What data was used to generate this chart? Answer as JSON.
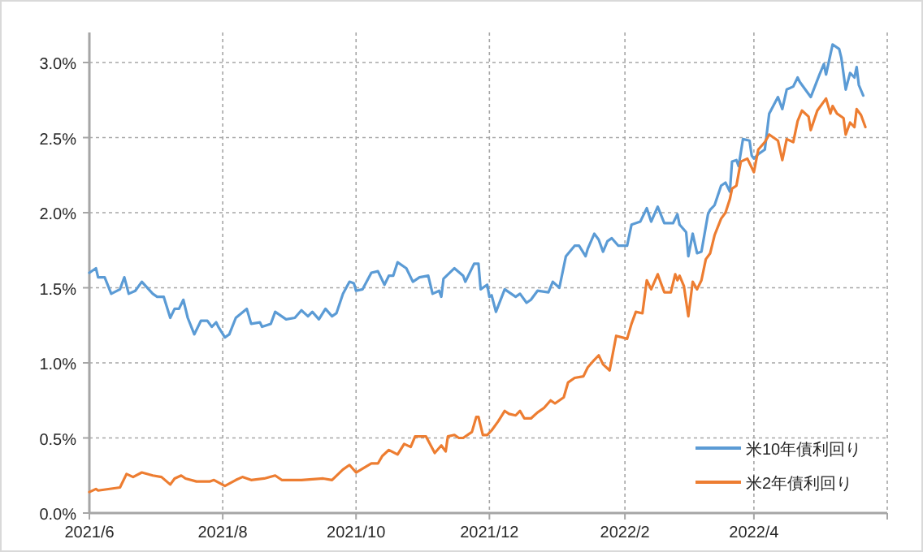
{
  "chart_data": {
    "type": "line",
    "xlim": [
      "2021-06-01",
      "2022-06-01"
    ],
    "xticks": [
      {
        "value": "2021-06-01",
        "label": "2021/6"
      },
      {
        "value": "2021-08-01",
        "label": "2021/8"
      },
      {
        "value": "2021-10-01",
        "label": "2021/10"
      },
      {
        "value": "2021-12-01",
        "label": "2021/12"
      },
      {
        "value": "2022-02-01",
        "label": "2022/2"
      },
      {
        "value": "2022-04-01",
        "label": "2022/4"
      },
      {
        "value": "2022-06-01",
        "label": null
      }
    ],
    "ylim": [
      0,
      3.2
    ],
    "yticks": [
      {
        "value": 0,
        "label": "0.0%"
      },
      {
        "value": 0.5,
        "label": "0.5%"
      },
      {
        "value": 1,
        "label": "1.0%"
      },
      {
        "value": 1.5,
        "label": "1.5%"
      },
      {
        "value": 2,
        "label": "2.0%"
      },
      {
        "value": 2.5,
        "label": "2.5%"
      },
      {
        "value": 3,
        "label": "3.0%"
      }
    ],
    "grid": true,
    "legend": "bottom right",
    "marker": "none",
    "line_style": "solid",
    "series": [
      {
        "name": "米10年債利回り",
        "color": "#5b9bd5",
        "x": [
          "2021-06-01",
          "2021-06-04",
          "2021-06-05",
          "2021-06-08",
          "2021-06-11",
          "2021-06-15",
          "2021-06-17",
          "2021-06-19",
          "2021-06-22",
          "2021-06-25",
          "2021-06-30",
          "2021-07-02",
          "2021-07-05",
          "2021-07-08",
          "2021-07-10",
          "2021-07-12",
          "2021-07-14",
          "2021-07-16",
          "2021-07-19",
          "2021-07-22",
          "2021-07-25",
          "2021-07-27",
          "2021-07-29",
          "2021-07-30",
          "2021-08-02",
          "2021-08-04",
          "2021-08-07",
          "2021-08-12",
          "2021-08-14",
          "2021-08-18",
          "2021-08-19",
          "2021-08-23",
          "2021-08-25",
          "2021-08-30",
          "2021-09-03",
          "2021-09-06",
          "2021-09-09",
          "2021-09-11",
          "2021-09-14",
          "2021-09-17",
          "2021-09-20",
          "2021-09-22",
          "2021-09-25",
          "2021-09-28",
          "2021-09-30",
          "2021-10-01",
          "2021-10-04",
          "2021-10-08",
          "2021-10-11",
          "2021-10-14",
          "2021-10-16",
          "2021-10-18",
          "2021-10-20",
          "2021-10-24",
          "2021-10-27",
          "2021-10-30",
          "2021-11-03",
          "2021-11-05",
          "2021-11-08",
          "2021-11-09",
          "2021-11-10",
          "2021-11-15",
          "2021-11-19",
          "2021-11-20",
          "2021-11-24",
          "2021-11-26",
          "2021-11-27",
          "2021-11-30",
          "2021-12-01",
          "2021-12-02",
          "2021-12-04",
          "2021-12-08",
          "2021-12-13",
          "2021-12-15",
          "2021-12-18",
          "2021-12-20",
          "2021-12-23",
          "2021-12-28",
          "2021-12-30",
          "2022-01-02",
          "2022-01-05",
          "2022-01-09",
          "2022-01-11",
          "2022-01-14",
          "2022-01-15",
          "2022-01-18",
          "2022-01-20",
          "2022-01-22",
          "2022-01-24",
          "2022-01-26",
          "2022-01-29",
          "2022-02-02",
          "2022-02-04",
          "2022-02-08",
          "2022-02-11",
          "2022-02-13",
          "2022-02-16",
          "2022-02-19",
          "2022-02-23",
          "2022-02-25",
          "2022-02-26",
          "2022-03-01",
          "2022-03-02",
          "2022-03-04",
          "2022-03-06",
          "2022-03-08",
          "2022-03-11",
          "2022-03-12",
          "2022-03-14",
          "2022-03-17",
          "2022-03-19",
          "2022-03-21",
          "2022-03-22",
          "2022-03-24",
          "2022-03-25",
          "2022-03-27",
          "2022-03-30",
          "2022-03-31",
          "2022-04-01",
          "2022-04-03",
          "2022-04-06",
          "2022-04-08",
          "2022-04-12",
          "2022-04-14",
          "2022-04-16",
          "2022-04-19",
          "2022-04-21",
          "2022-04-22",
          "2022-04-27",
          "2022-05-01",
          "2022-05-03",
          "2022-05-04",
          "2022-05-07",
          "2022-05-10",
          "2022-05-11",
          "2022-05-13",
          "2022-05-15",
          "2022-05-17",
          "2022-05-18",
          "2022-05-19",
          "2022-05-21"
        ],
        "values": [
          1.6,
          1.63,
          1.57,
          1.57,
          1.46,
          1.49,
          1.57,
          1.46,
          1.48,
          1.54,
          1.46,
          1.44,
          1.44,
          1.3,
          1.36,
          1.36,
          1.42,
          1.3,
          1.19,
          1.28,
          1.28,
          1.24,
          1.27,
          1.24,
          1.17,
          1.19,
          1.3,
          1.36,
          1.26,
          1.27,
          1.24,
          1.26,
          1.34,
          1.29,
          1.3,
          1.35,
          1.31,
          1.34,
          1.29,
          1.36,
          1.31,
          1.33,
          1.46,
          1.54,
          1.53,
          1.48,
          1.49,
          1.6,
          1.61,
          1.52,
          1.58,
          1.58,
          1.67,
          1.63,
          1.54,
          1.57,
          1.58,
          1.46,
          1.48,
          1.44,
          1.56,
          1.63,
          1.58,
          1.54,
          1.66,
          1.66,
          1.49,
          1.52,
          1.44,
          1.45,
          1.34,
          1.49,
          1.44,
          1.46,
          1.4,
          1.42,
          1.48,
          1.47,
          1.54,
          1.5,
          1.71,
          1.78,
          1.78,
          1.71,
          1.76,
          1.86,
          1.82,
          1.74,
          1.81,
          1.83,
          1.78,
          1.78,
          1.92,
          1.94,
          2.03,
          1.94,
          2.04,
          1.93,
          1.93,
          1.99,
          1.92,
          1.87,
          1.71,
          1.86,
          1.73,
          1.74,
          1.99,
          2.02,
          2.05,
          2.18,
          2.2,
          2.14,
          2.34,
          2.35,
          2.31,
          2.49,
          2.48,
          2.38,
          2.36,
          2.39,
          2.42,
          2.66,
          2.77,
          2.69,
          2.82,
          2.84,
          2.9,
          2.87,
          2.77,
          2.92,
          2.99,
          2.92,
          3.12,
          3.09,
          3.03,
          2.82,
          2.93,
          2.9,
          2.97,
          2.85,
          2.78
        ]
      },
      {
        "name": "米2年債利回り",
        "color": "#ed7d31",
        "x": [
          "2021-06-01",
          "2021-06-04",
          "2021-06-05",
          "2021-06-15",
          "2021-06-18",
          "2021-06-21",
          "2021-06-25",
          "2021-06-30",
          "2021-07-04",
          "2021-07-08",
          "2021-07-10",
          "2021-07-13",
          "2021-07-15",
          "2021-07-20",
          "2021-07-26",
          "2021-07-28",
          "2021-08-02",
          "2021-08-07",
          "2021-08-10",
          "2021-08-14",
          "2021-08-20",
          "2021-08-25",
          "2021-08-28",
          "2021-09-01",
          "2021-09-06",
          "2021-09-16",
          "2021-09-20",
          "2021-09-25",
          "2021-09-28",
          "2021-10-01",
          "2021-10-08",
          "2021-10-11",
          "2021-10-13",
          "2021-10-16",
          "2021-10-20",
          "2021-10-23",
          "2021-10-26",
          "2021-10-28",
          "2021-11-02",
          "2021-11-06",
          "2021-11-09",
          "2021-11-11",
          "2021-11-12",
          "2021-11-15",
          "2021-11-17",
          "2021-11-19",
          "2021-11-23",
          "2021-11-25",
          "2021-11-26",
          "2021-11-28",
          "2021-11-30",
          "2021-12-02",
          "2021-12-05",
          "2021-12-08",
          "2021-12-10",
          "2021-12-13",
          "2021-12-15",
          "2021-12-17",
          "2021-12-20",
          "2021-12-23",
          "2021-12-26",
          "2021-12-29",
          "2021-12-31",
          "2022-01-04",
          "2022-01-06",
          "2022-01-09",
          "2022-01-13",
          "2022-01-15",
          "2022-01-18",
          "2022-01-20",
          "2022-01-22",
          "2022-01-25",
          "2022-01-28",
          "2022-02-02",
          "2022-02-04",
          "2022-02-06",
          "2022-02-09",
          "2022-02-11",
          "2022-02-13",
          "2022-02-16",
          "2022-02-19",
          "2022-02-22",
          "2022-02-24",
          "2022-02-25",
          "2022-02-26",
          "2022-02-28",
          "2022-03-02",
          "2022-03-04",
          "2022-03-06",
          "2022-03-08",
          "2022-03-10",
          "2022-03-12",
          "2022-03-14",
          "2022-03-17",
          "2022-03-19",
          "2022-03-21",
          "2022-03-22",
          "2022-03-24",
          "2022-03-26",
          "2022-03-29",
          "2022-04-01",
          "2022-04-03",
          "2022-04-06",
          "2022-04-08",
          "2022-04-12",
          "2022-04-14",
          "2022-04-16",
          "2022-04-19",
          "2022-04-21",
          "2022-04-23",
          "2022-04-26",
          "2022-04-27",
          "2022-04-30",
          "2022-05-04",
          "2022-05-06",
          "2022-05-07",
          "2022-05-09",
          "2022-05-12",
          "2022-05-13",
          "2022-05-15",
          "2022-05-17",
          "2022-05-18",
          "2022-05-20",
          "2022-05-22"
        ],
        "values": [
          0.14,
          0.16,
          0.15,
          0.17,
          0.26,
          0.24,
          0.27,
          0.25,
          0.24,
          0.19,
          0.23,
          0.25,
          0.23,
          0.21,
          0.21,
          0.22,
          0.18,
          0.22,
          0.24,
          0.22,
          0.23,
          0.25,
          0.22,
          0.22,
          0.22,
          0.23,
          0.22,
          0.29,
          0.32,
          0.27,
          0.33,
          0.33,
          0.38,
          0.42,
          0.39,
          0.46,
          0.44,
          0.51,
          0.51,
          0.4,
          0.45,
          0.41,
          0.51,
          0.52,
          0.5,
          0.5,
          0.54,
          0.64,
          0.64,
          0.52,
          0.52,
          0.55,
          0.61,
          0.68,
          0.66,
          0.65,
          0.68,
          0.63,
          0.63,
          0.67,
          0.7,
          0.75,
          0.73,
          0.77,
          0.87,
          0.9,
          0.91,
          0.97,
          1.02,
          1.05,
          0.99,
          0.95,
          1.18,
          1.16,
          1.26,
          1.34,
          1.33,
          1.55,
          1.49,
          1.59,
          1.47,
          1.47,
          1.59,
          1.55,
          1.58,
          1.51,
          1.31,
          1.54,
          1.49,
          1.55,
          1.69,
          1.73,
          1.85,
          1.96,
          2.0,
          2.09,
          2.16,
          2.18,
          2.34,
          2.36,
          2.27,
          2.42,
          2.47,
          2.52,
          2.48,
          2.35,
          2.49,
          2.47,
          2.61,
          2.68,
          2.64,
          2.55,
          2.68,
          2.76,
          2.66,
          2.71,
          2.66,
          2.63,
          2.52,
          2.6,
          2.57,
          2.69,
          2.65,
          2.57
        ]
      }
    ]
  }
}
